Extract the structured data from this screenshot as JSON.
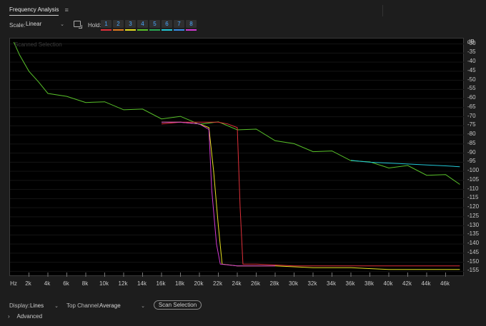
{
  "panel": {
    "title": "Frequency Analysis",
    "menu_icon": "≡"
  },
  "toolbar": {
    "scale_label": "Scale:",
    "scale_value": "Linear",
    "hold_label": "Hold:",
    "holds": [
      {
        "label": "1",
        "color": "#e0303a"
      },
      {
        "label": "2",
        "color": "#e07a20"
      },
      {
        "label": "3",
        "color": "#e6df20"
      },
      {
        "label": "4",
        "color": "#59c22a"
      },
      {
        "label": "5",
        "color": "#2aa854"
      },
      {
        "label": "6",
        "color": "#22c8d6"
      },
      {
        "label": "7",
        "color": "#3a8ee6"
      },
      {
        "label": "8",
        "color": "#d43ad4"
      }
    ]
  },
  "plot": {
    "watermark": "Scanned Selection",
    "y_unit": "dB",
    "y_ticks": [
      "-30",
      "-35",
      "-40",
      "-45",
      "-50",
      "-55",
      "-60",
      "-65",
      "-70",
      "-75",
      "-80",
      "-85",
      "-90",
      "-95",
      "-100",
      "-105",
      "-110",
      "-115",
      "-120",
      "-125",
      "-130",
      "-135",
      "-140",
      "-145",
      "-150",
      "-155"
    ],
    "x_ticks": [
      "Hz",
      "2k",
      "4k",
      "6k",
      "8k",
      "10k",
      "12k",
      "14k",
      "16k",
      "18k",
      "20k",
      "22k",
      "24k",
      "26k",
      "28k",
      "30k",
      "32k",
      "34k",
      "36k",
      "38k",
      "40k",
      "42k",
      "44k",
      "46k"
    ]
  },
  "chart_data": {
    "type": "line",
    "xlabel": "Hz",
    "ylabel": "dB",
    "xlim": [
      0,
      48000
    ],
    "ylim": [
      -158,
      -27
    ],
    "series": [
      {
        "color": "#59c22a",
        "x": [
          400,
          1000,
          2000,
          3000,
          4000,
          6000,
          8000,
          10000,
          12000,
          14000,
          16000,
          18000,
          20000,
          22000,
          24000,
          26000,
          28000,
          30000,
          32000,
          34000,
          36000,
          38000,
          40000,
          42000,
          44000,
          46000,
          47500
        ],
        "y": [
          -29,
          -36,
          -45,
          -52,
          -56,
          -60,
          -61,
          -63,
          -65,
          -67,
          -70,
          -71,
          -73,
          -74,
          -76,
          -78,
          -82,
          -86,
          -88,
          -90,
          -93,
          -96,
          -97,
          -98,
          -101,
          -103,
          -106
        ]
      },
      {
        "color": "#22c8d6",
        "x": [
          36000,
          38000,
          40000,
          42000,
          44000,
          46000,
          47500
        ],
        "y": [
          -94,
          -95,
          -95.5,
          -96,
          -96.5,
          -97,
          -97.5
        ]
      },
      {
        "color": "#e0303a",
        "x": [
          16000,
          18000,
          20000,
          22000,
          23000,
          24000,
          24300,
          24600,
          26000,
          30000,
          36000,
          40000,
          44000,
          47500
        ],
        "y": [
          -74,
          -73,
          -73,
          -73,
          -74,
          -76,
          -120,
          -151,
          -151,
          -152,
          -152,
          -152,
          -152,
          -152
        ]
      },
      {
        "color": "#e6df20",
        "x": [
          16000,
          18000,
          20000,
          21000,
          21500,
          22000,
          22400,
          24000,
          28000,
          32000,
          36000,
          40000,
          44000,
          47500
        ],
        "y": [
          -73,
          -73,
          -74,
          -76,
          -100,
          -130,
          -151,
          -152,
          -152,
          -153,
          -153,
          -154,
          -154,
          -154
        ]
      },
      {
        "color": "#d43ad4",
        "x": [
          16000,
          18000,
          20000,
          21000,
          21300,
          21800,
          22200,
          24000,
          28000
        ],
        "y": [
          -73,
          -73,
          -74,
          -77,
          -110,
          -140,
          -151,
          -152,
          -152
        ]
      }
    ]
  },
  "bottom": {
    "display_label": "Display:",
    "display_value": "Lines",
    "top_channel_label": "Top Channel:",
    "top_channel_value": "Average",
    "scan_button": "Scan Selection",
    "advanced_label": "Advanced"
  }
}
